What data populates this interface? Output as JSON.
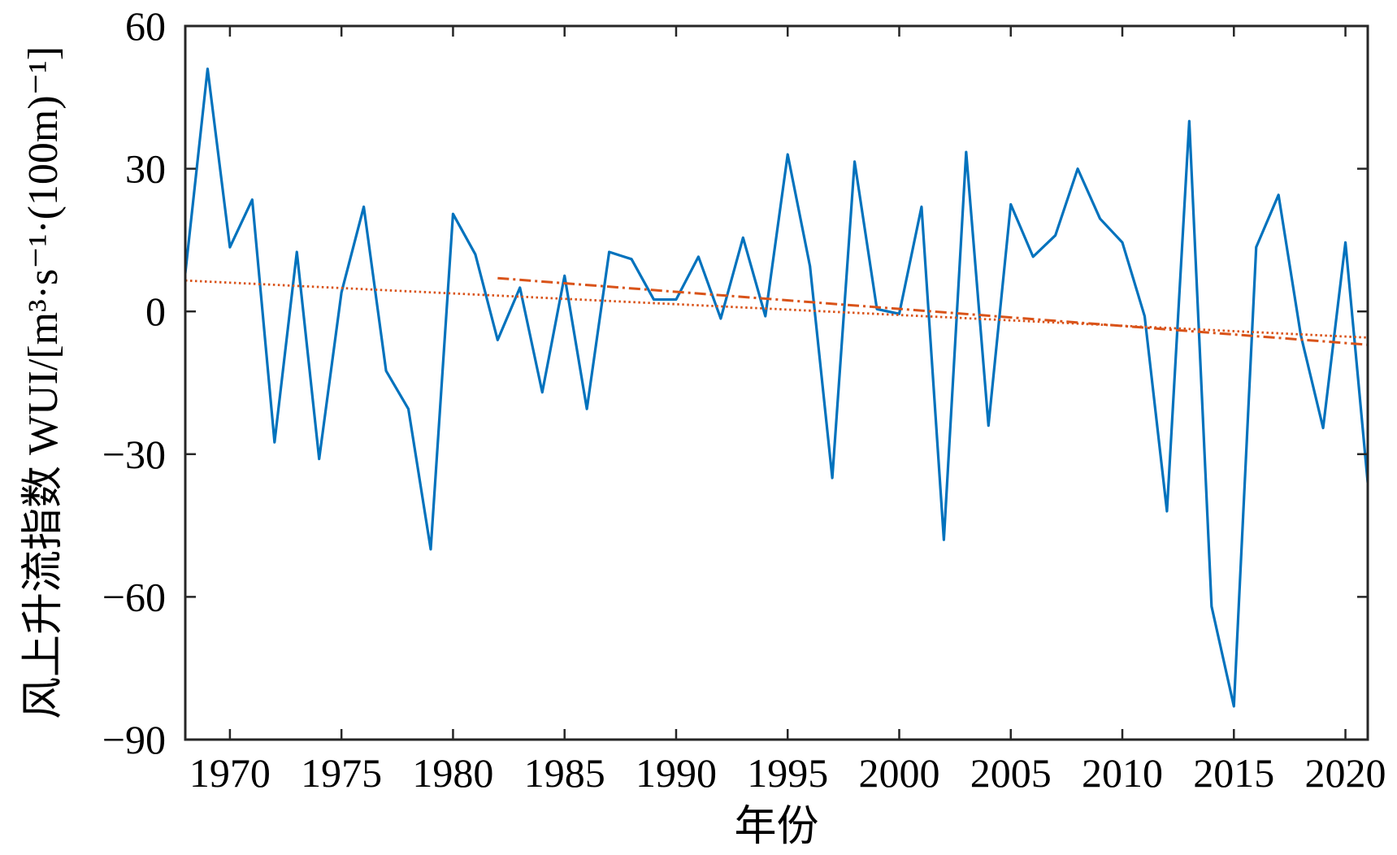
{
  "chart_data": {
    "type": "line",
    "title": "",
    "xlabel": "年份",
    "ylabel": "风上升流指数 WUI/[m³·s⁻¹·(100m)⁻¹]",
    "xlim": [
      1968,
      2021
    ],
    "ylim": [
      -90,
      60
    ],
    "xticks": [
      1970,
      1975,
      1980,
      1985,
      1990,
      1995,
      2000,
      2005,
      2010,
      2015,
      2020
    ],
    "yticks": [
      60,
      30,
      0,
      -30,
      -60,
      -90
    ],
    "grid": false,
    "legend": "none",
    "series": [
      {
        "color": "#0072BD",
        "style": "solid",
        "x": [
          1968,
          1969,
          1970,
          1971,
          1972,
          1973,
          1974,
          1975,
          1976,
          1977,
          1978,
          1979,
          1980,
          1981,
          1982,
          1983,
          1984,
          1985,
          1986,
          1987,
          1988,
          1989,
          1990,
          1991,
          1992,
          1993,
          1994,
          1995,
          1996,
          1997,
          1998,
          1999,
          2000,
          2001,
          2002,
          2003,
          2004,
          2005,
          2006,
          2007,
          2008,
          2009,
          2010,
          2011,
          2012,
          2013,
          2014,
          2015,
          2016,
          2017,
          2018,
          2019,
          2020,
          2021
        ],
        "values": [
          8,
          51,
          13.5,
          23.5,
          -27.5,
          12.5,
          -31,
          4,
          22,
          -12.5,
          -20.5,
          -50,
          20.5,
          12,
          -6,
          5,
          -17,
          7.5,
          -20.5,
          12.5,
          11,
          2.5,
          2.5,
          11.5,
          -1.5,
          15.5,
          -1,
          33,
          9.5,
          -35,
          31.5,
          0.5,
          -0.5,
          22,
          -48,
          33.5,
          -24,
          22.5,
          11.5,
          16,
          30,
          19.5,
          14.5,
          -1,
          -42,
          40,
          -62,
          -83,
          13.5,
          24.5,
          -5,
          -24.5,
          14.5,
          -36
        ]
      },
      {
        "color": "#D95319",
        "style": "dotted",
        "x": [
          1968,
          2021
        ],
        "values": [
          6.5,
          -5.5
        ]
      },
      {
        "color": "#D95319",
        "style": "dashdot",
        "x": [
          1982,
          2021
        ],
        "values": [
          7,
          -7
        ]
      }
    ]
  }
}
